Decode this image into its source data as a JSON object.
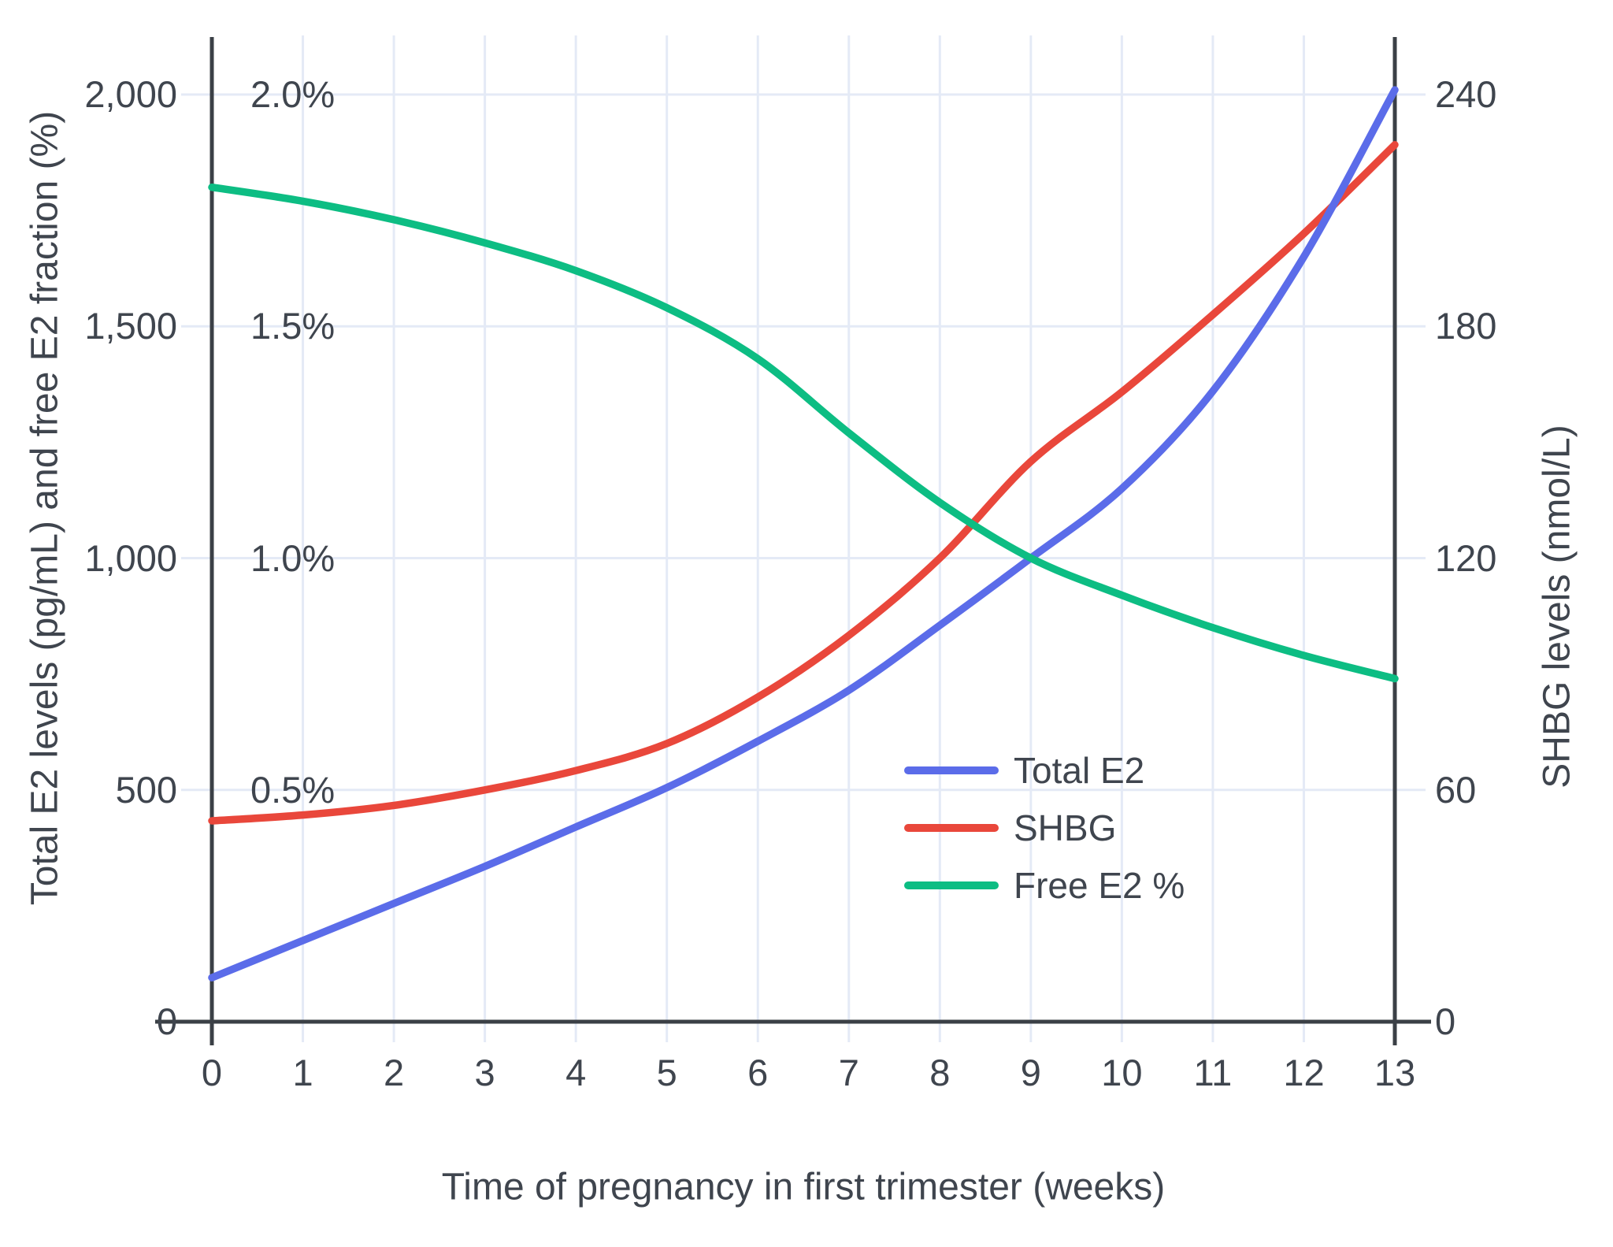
{
  "chart_data": {
    "type": "line",
    "xlabel": "Time of pregnancy in first trimester (weeks)",
    "ylabel_left": "Total E2 levels (pg/mL) and free E2 fraction (%)",
    "ylabel_right": "SHBG levels (nmol/L)",
    "x": [
      0,
      1,
      2,
      3,
      4,
      5,
      6,
      7,
      8,
      9,
      10,
      11,
      12,
      13
    ],
    "x_ticks": [
      "0",
      "1",
      "2",
      "3",
      "4",
      "5",
      "6",
      "7",
      "8",
      "9",
      "10",
      "11",
      "12",
      "13"
    ],
    "xlim": [
      0,
      13
    ],
    "ylim_left": [
      0,
      2000
    ],
    "ylim_right": [
      0,
      240
    ],
    "y_left_ticks": [
      {
        "label": "0",
        "value": 0
      },
      {
        "label": "500",
        "value": 500
      },
      {
        "label": "1,000",
        "value": 1000
      },
      {
        "label": "1,500",
        "value": 1500
      },
      {
        "label": "2,000",
        "value": 2000
      }
    ],
    "y_right_ticks": [
      {
        "label": "0",
        "value": 0
      },
      {
        "label": "60",
        "value": 60
      },
      {
        "label": "120",
        "value": 120
      },
      {
        "label": "180",
        "value": 180
      },
      {
        "label": "240",
        "value": 240
      }
    ],
    "pct_labels": [
      {
        "text": "2.0%",
        "value": 2.0
      },
      {
        "text": "1.5%",
        "value": 1.5
      },
      {
        "text": "1.0%",
        "value": 1.0
      },
      {
        "text": "0.5%",
        "value": 0.5
      }
    ],
    "grid": true,
    "legend_position": "inside-right-middle",
    "z_order": [
      1,
      0,
      2
    ],
    "series": [
      {
        "name": "Total E2",
        "axis": "left",
        "unit": "pg/mL",
        "color": "#5b6ce9",
        "values": [
          95,
          175,
          255,
          335,
          420,
          505,
          605,
          715,
          855,
          1000,
          1150,
          1360,
          1650,
          2010
        ]
      },
      {
        "name": "SHBG",
        "axis": "right",
        "unit": "nmol/L",
        "color": "#e9473b",
        "values": [
          52,
          53.5,
          56,
          60,
          65,
          72,
          84,
          100,
          120,
          145,
          163,
          183,
          204,
          227
        ]
      },
      {
        "name": "Free E2 %",
        "axis": "left_pct",
        "unit": "%",
        "color": "#0dbd83",
        "values": [
          1.8,
          1.77,
          1.73,
          1.68,
          1.62,
          1.54,
          1.43,
          1.27,
          1.12,
          1.0,
          0.92,
          0.85,
          0.79,
          0.74
        ]
      }
    ],
    "colors": {
      "grid": "#e4eaf6",
      "axis": "#3b4046",
      "text": "#3f454e",
      "background": "#ffffff"
    }
  }
}
